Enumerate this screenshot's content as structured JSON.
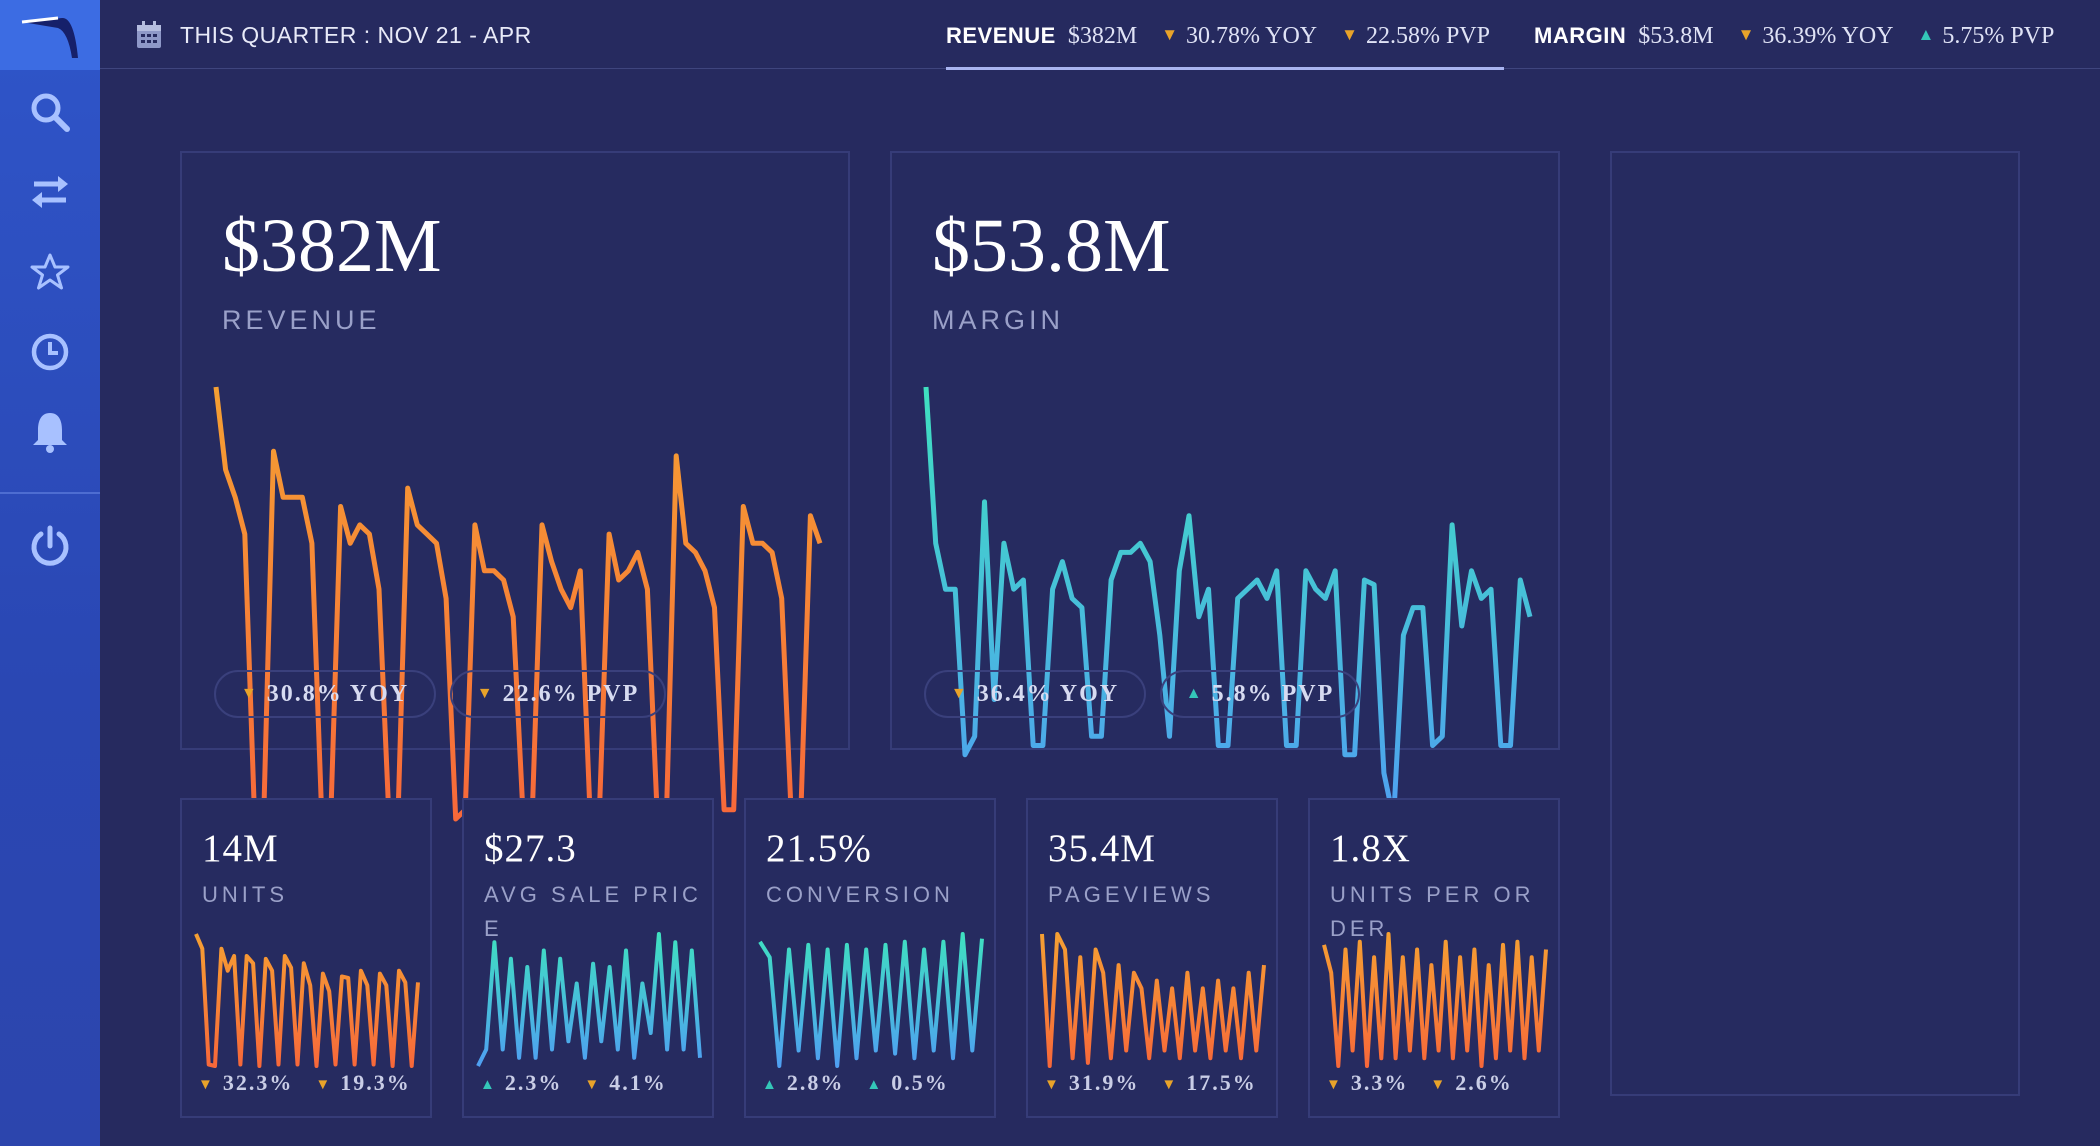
{
  "sidebar": {
    "items": [
      {
        "name": "search",
        "icon": "search-icon"
      },
      {
        "name": "transfer",
        "icon": "swap-arrows-icon"
      },
      {
        "name": "favorites",
        "icon": "star-icon"
      },
      {
        "name": "history",
        "icon": "clock-icon"
      },
      {
        "name": "alerts",
        "icon": "bell-icon"
      },
      {
        "name": "logout",
        "icon": "power-icon"
      }
    ]
  },
  "topbar": {
    "date_range": "THIS QUARTER : NOV 21 - APR",
    "tabs": [
      {
        "name": "REVENUE",
        "value": "$382M",
        "yoy": "30.78% YOY",
        "yoy_dir": "down",
        "pvp": "22.58% PVP",
        "pvp_dir": "down"
      },
      {
        "name": "MARGIN",
        "value": "$53.8M",
        "yoy": "36.39% YOY",
        "yoy_dir": "down",
        "pvp": "5.75% PVP",
        "pvp_dir": "up"
      }
    ]
  },
  "colors": {
    "orange": "#f79a34",
    "teal": "#3fd8c4",
    "down_arrow": "#e8a32a",
    "up_arrow": "#34c6b8"
  },
  "cards": {
    "revenue": {
      "value": "$382M",
      "label": "REVENUE",
      "yoy": "30.8% YOY",
      "pvp": "22.6% PVP"
    },
    "margin": {
      "value": "$53.8M",
      "label": "MARGIN",
      "yoy": "36.4% YOY",
      "pvp": "5.8% PVP"
    },
    "units": {
      "value": "14M",
      "label": "UNITS",
      "s1": "32.3%",
      "s2": "19.3%"
    },
    "avg_sale_price": {
      "value": "$27.3",
      "label": "AVG SALE PRICE",
      "s1": "2.3%",
      "s2": "4.1%"
    },
    "conversion": {
      "value": "21.5%",
      "label": "CONVERSION",
      "s1": "2.8%",
      "s2": "0.5%"
    },
    "pageviews": {
      "value": "35.4M",
      "label": "PAGEVIEWS",
      "s1": "31.9%",
      "s2": "17.5%"
    },
    "units_per_order": {
      "value": "1.8X",
      "label": "UNITS PER ORDER",
      "s1": "3.3%",
      "s2": "2.6%"
    }
  },
  "chart_data": [
    {
      "type": "line",
      "name": "revenue",
      "values": [
        98,
        80,
        74,
        66,
        6,
        6,
        84,
        74,
        74,
        74,
        64,
        6,
        6,
        72,
        64,
        68,
        66,
        54,
        6,
        6,
        76,
        68,
        66,
        64,
        52,
        4,
        6,
        68,
        58,
        58,
        56,
        48,
        6,
        6,
        68,
        60,
        54,
        50,
        58,
        6,
        6,
        66,
        56,
        58,
        62,
        54,
        6,
        6,
        83,
        64,
        62,
        58,
        50,
        6,
        6,
        72,
        64,
        64,
        62,
        52,
        5,
        5,
        70,
        64
      ]
    },
    {
      "type": "line",
      "name": "margin",
      "values": [
        100,
        66,
        56,
        56,
        20,
        24,
        75,
        32,
        66,
        56,
        58,
        22,
        22,
        56,
        62,
        54,
        52,
        24,
        24,
        58,
        64,
        64,
        66,
        62,
        46,
        24,
        60,
        72,
        50,
        56,
        22,
        22,
        54,
        56,
        58,
        54,
        60,
        22,
        22,
        60,
        56,
        54,
        60,
        20,
        20,
        58,
        57,
        16,
        6,
        46,
        52,
        52,
        22,
        24,
        70,
        48,
        60,
        54,
        56,
        22,
        22,
        58,
        50
      ]
    },
    {
      "type": "line",
      "name": "units",
      "values": [
        95,
        85,
        6,
        5,
        85,
        70,
        80,
        6,
        80,
        75,
        5,
        78,
        70,
        6,
        80,
        72,
        6,
        75,
        60,
        5,
        68,
        56,
        6,
        66,
        65,
        6,
        70,
        60,
        6,
        68,
        60,
        5,
        70,
        62,
        5,
        62
      ]
    },
    {
      "type": "line",
      "name": "avg_sale_price",
      "values": [
        10,
        20,
        85,
        20,
        75,
        15,
        70,
        15,
        80,
        20,
        75,
        25,
        60,
        15,
        72,
        25,
        70,
        20,
        80,
        15,
        60,
        30,
        90,
        20,
        85,
        20,
        80,
        15
      ]
    },
    {
      "type": "line",
      "name": "conversion",
      "values": [
        90,
        80,
        10,
        85,
        20,
        88,
        15,
        85,
        10,
        88,
        15,
        85,
        20,
        88,
        18,
        90,
        15,
        85,
        20,
        90,
        15,
        95,
        20,
        92
      ]
    },
    {
      "type": "line",
      "name": "pageviews",
      "values": [
        95,
        10,
        95,
        85,
        15,
        80,
        12,
        85,
        70,
        15,
        75,
        20,
        70,
        60,
        15,
        65,
        20,
        60,
        15,
        70,
        20,
        60,
        15,
        65,
        20,
        60,
        15,
        70,
        20,
        75
      ]
    },
    {
      "type": "line",
      "name": "units_per_order",
      "values": [
        88,
        70,
        10,
        85,
        20,
        90,
        10,
        80,
        15,
        95,
        15,
        80,
        20,
        85,
        15,
        75,
        20,
        90,
        15,
        80,
        20,
        85,
        10,
        75,
        15,
        88,
        20,
        90,
        15,
        80,
        20,
        85
      ]
    }
  ]
}
